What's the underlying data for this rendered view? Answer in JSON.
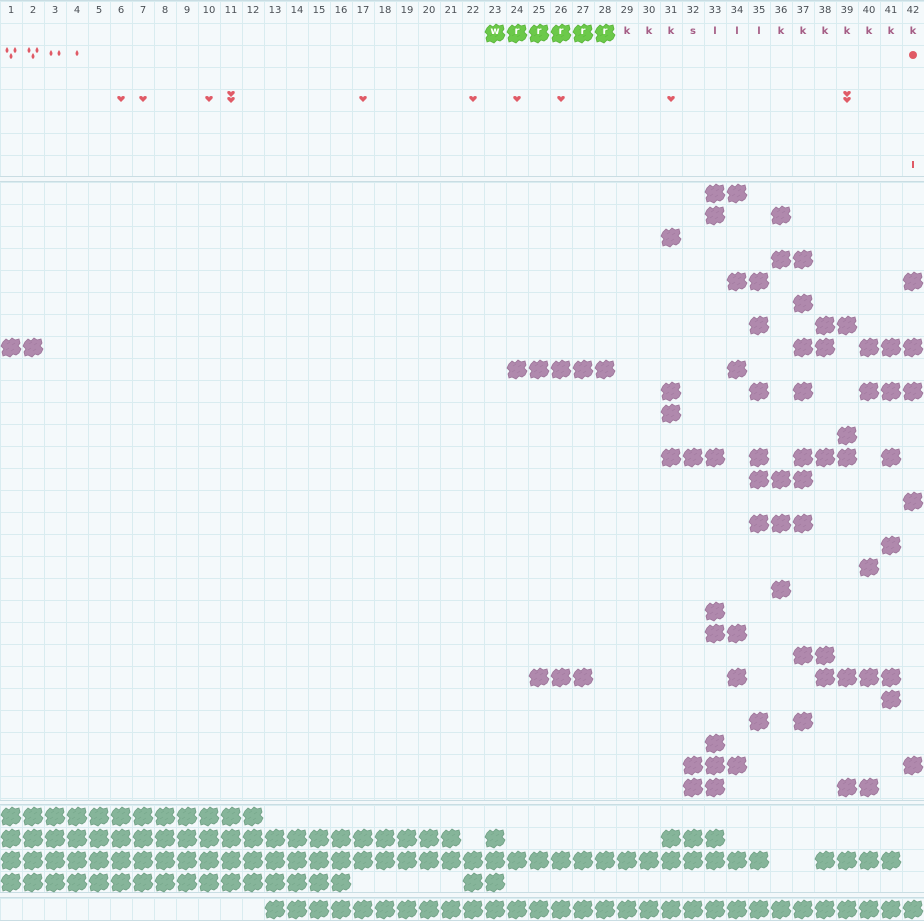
{
  "colors": {
    "background": "#f4f9fb",
    "grid": "#d9ecf0",
    "number": "#4a4f55",
    "green_tile": "#6cc94a",
    "green_tile_dark": "#57b338",
    "letter": "#a55e86",
    "red": "#e05a66",
    "purple": "#b089ad",
    "purple_dark": "#9a7297",
    "teal": "#86b59a",
    "teal_dark": "#6e9e83"
  },
  "columns": [
    "1",
    "2",
    "3",
    "4",
    "5",
    "6",
    "7",
    "8",
    "9",
    "10",
    "11",
    "12",
    "13",
    "14",
    "15",
    "16",
    "17",
    "18",
    "19",
    "20",
    "21",
    "22",
    "23",
    "24",
    "25",
    "26",
    "27",
    "28",
    "29",
    "30",
    "31",
    "32",
    "33",
    "34",
    "35",
    "36",
    "37",
    "38",
    "39",
    "40",
    "41",
    "42"
  ],
  "header": {
    "green_tiles": [
      {
        "col": 23,
        "label": "w"
      },
      {
        "col": 24,
        "label": "r"
      },
      {
        "col": 25,
        "label": "r"
      },
      {
        "col": 26,
        "label": "r"
      },
      {
        "col": 27,
        "label": "r"
      },
      {
        "col": 28,
        "label": "r"
      }
    ],
    "letters": [
      {
        "col": 29,
        "label": "k"
      },
      {
        "col": 30,
        "label": "k"
      },
      {
        "col": 31,
        "label": "k"
      },
      {
        "col": 32,
        "label": "s"
      },
      {
        "col": 33,
        "label": "l"
      },
      {
        "col": 34,
        "label": "l"
      },
      {
        "col": 35,
        "label": "l"
      },
      {
        "col": 36,
        "label": "k"
      },
      {
        "col": 37,
        "label": "k"
      },
      {
        "col": 38,
        "label": "k"
      },
      {
        "col": 39,
        "label": "k"
      },
      {
        "col": 40,
        "label": "k"
      },
      {
        "col": 41,
        "label": "k"
      },
      {
        "col": 42,
        "label": "k"
      }
    ],
    "drops": [
      {
        "col": 1,
        "count": 3
      },
      {
        "col": 2,
        "count": 3
      },
      {
        "col": 3,
        "count": 2
      },
      {
        "col": 4,
        "count": 1
      }
    ],
    "hearts": [
      {
        "col": 6,
        "count": 1
      },
      {
        "col": 7,
        "count": 1
      },
      {
        "col": 10,
        "count": 1
      },
      {
        "col": 11,
        "count": 2
      },
      {
        "col": 17,
        "count": 1
      },
      {
        "col": 22,
        "count": 1
      },
      {
        "col": 24,
        "count": 1
      },
      {
        "col": 26,
        "count": 1
      },
      {
        "col": 31,
        "count": 1
      },
      {
        "col": 39,
        "count": 2
      }
    ],
    "dot_col": 42,
    "tick_col": 42
  },
  "purple_rows": [
    [
      33,
      34
    ],
    [
      33,
      36
    ],
    [
      31
    ],
    [
      36,
      37
    ],
    [
      34,
      35,
      42
    ],
    [
      37
    ],
    [
      35,
      38,
      39
    ],
    [
      1,
      2,
      37,
      38,
      40,
      41,
      42
    ],
    [
      24,
      25,
      26,
      27,
      28,
      34
    ],
    [
      31,
      35,
      37,
      40,
      41,
      42
    ],
    [
      31
    ],
    [
      39
    ],
    [
      31,
      32,
      33,
      35,
      37,
      38,
      39,
      41
    ],
    [
      35,
      36,
      37
    ],
    [
      42
    ],
    [
      35,
      36,
      37
    ],
    [
      41
    ],
    [
      40
    ],
    [
      36
    ],
    [
      33
    ],
    [
      33,
      34
    ],
    [
      37,
      38
    ],
    [
      25,
      26,
      27,
      34,
      38,
      39,
      40,
      41
    ],
    [
      41
    ],
    [
      35,
      37
    ],
    [
      33
    ],
    [
      32,
      33,
      34,
      42
    ],
    [
      32,
      33,
      39,
      40
    ]
  ],
  "teal_rows": [
    [
      1,
      2,
      3,
      4,
      5,
      6,
      7,
      8,
      9,
      10,
      11,
      12
    ],
    [
      1,
      2,
      3,
      4,
      5,
      6,
      7,
      8,
      9,
      10,
      11,
      12,
      13,
      14,
      15,
      16,
      17,
      18,
      19,
      20,
      21,
      23,
      31,
      32,
      33
    ],
    [
      1,
      2,
      3,
      4,
      5,
      6,
      7,
      8,
      9,
      10,
      11,
      12,
      13,
      14,
      15,
      16,
      17,
      18,
      19,
      20,
      21,
      22,
      23,
      24,
      25,
      26,
      27,
      28,
      29,
      30,
      31,
      32,
      33,
      34,
      35,
      38,
      39,
      40,
      41
    ],
    [
      1,
      2,
      3,
      4,
      5,
      6,
      7,
      8,
      9,
      10,
      11,
      12,
      13,
      14,
      15,
      16,
      22,
      23
    ]
  ],
  "bottom_row": [
    13,
    14,
    15,
    16,
    17,
    18,
    19,
    20,
    21,
    22,
    23,
    24,
    25,
    26,
    27,
    28,
    29,
    30,
    31,
    32,
    33,
    34,
    35,
    36,
    37,
    38,
    39,
    40,
    41,
    42
  ]
}
